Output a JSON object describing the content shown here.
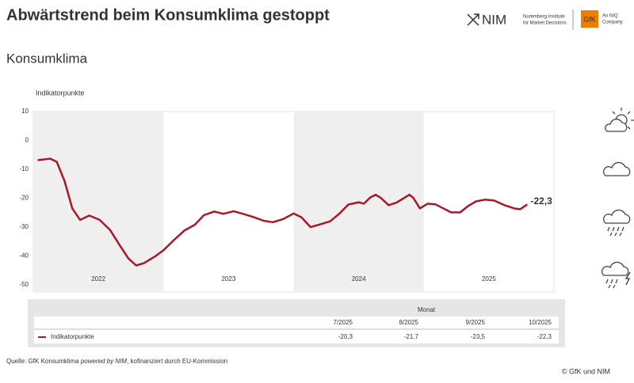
{
  "header": {
    "title": "Abwärtstrend beim Konsumklima gestoppt",
    "logo_nim": "NIM",
    "logo_nim_text": [
      "Nuremberg Institute",
      "for Market Decisions"
    ],
    "logo_gfk": "GfK",
    "logo_gfk_text": [
      "An NIQ",
      "Company"
    ]
  },
  "chart_data": {
    "type": "line",
    "title": "Konsumklima",
    "y_label": "Indikatorpunkte",
    "years": [
      2022,
      2023,
      2024,
      2025
    ],
    "band_shading": [
      true,
      false,
      true,
      false
    ],
    "xlim": [
      2022,
      2026
    ],
    "ylim": [
      -50,
      10
    ],
    "yticks": [
      -50,
      -40,
      -30,
      -20,
      -10,
      0,
      10
    ],
    "series": [
      {
        "name": "Indikatorpunkte",
        "color": "#a8182a",
        "x": [
          2022.04,
          2022.13,
          2022.18,
          2022.24,
          2022.3,
          2022.36,
          2022.43,
          2022.51,
          2022.59,
          2022.66,
          2022.73,
          2022.79,
          2022.85,
          2022.93,
          2023.0,
          2023.08,
          2023.16,
          2023.24,
          2023.31,
          2023.39,
          2023.46,
          2023.54,
          2023.61,
          2023.69,
          2023.77,
          2023.84,
          2023.92,
          2024.0,
          2024.06,
          2024.13,
          2024.2,
          2024.28,
          2024.35,
          2024.42,
          2024.5,
          2024.54,
          2024.59,
          2024.63,
          2024.67,
          2024.73,
          2024.79,
          2024.85,
          2024.89,
          2024.92,
          2024.97,
          2025.03,
          2025.09,
          2025.15,
          2025.21,
          2025.28,
          2025.34,
          2025.4,
          2025.47,
          2025.54,
          2025.62,
          2025.7,
          2025.74,
          2025.79
        ],
        "values": [
          -6.8,
          -6.3,
          -7.4,
          -14,
          -23.6,
          -27.5,
          -26,
          -27.5,
          -31,
          -36,
          -40.8,
          -43.3,
          -42.5,
          -40.3,
          -38,
          -34.5,
          -31.2,
          -29.2,
          -25.9,
          -24.6,
          -25.4,
          -24.5,
          -25.4,
          -26.5,
          -27.8,
          -28.3,
          -27.2,
          -25.3,
          -26.6,
          -30,
          -29.1,
          -28,
          -25.4,
          -22.2,
          -21.4,
          -21.9,
          -19.7,
          -18.8,
          -19.9,
          -22.4,
          -21.5,
          -19.9,
          -18.8,
          -19.9,
          -23.5,
          -21.9,
          -22.1,
          -23.5,
          -24.9,
          -24.9,
          -22.7,
          -21.1,
          -20.5,
          -20.8,
          -22.4,
          -23.6,
          -23.8,
          -22.3
        ]
      }
    ],
    "end_label": "-22,3"
  },
  "table": {
    "group_header": "Monat",
    "columns": [
      "7/2025",
      "8/2025",
      "9/2025",
      "10/2025"
    ],
    "rows": [
      [
        "-20,3",
        "-21,7",
        "-23,5",
        "-22,3"
      ]
    ]
  },
  "footer": {
    "source": [
      "Quelle: GfK Konsumklima ",
      "powered by NIM",
      ", kofinanziert durch EU-Kommission"
    ],
    "copyright": "© GfK und NIM"
  }
}
